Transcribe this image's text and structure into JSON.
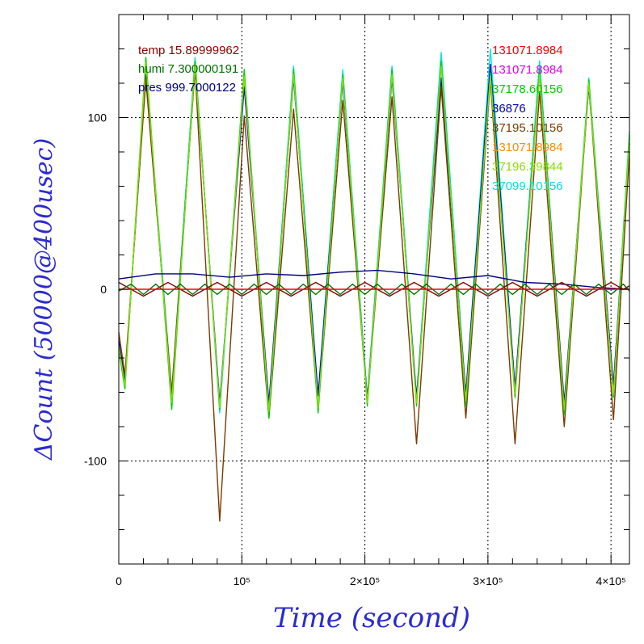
{
  "chart_data": {
    "type": "line",
    "xlabel": "Time (second)",
    "ylabel": "ΔCount (50000@400usec)",
    "xlim": [
      0,
      415000
    ],
    "ylim": [
      -160,
      160
    ],
    "grid": true,
    "x_ticks": [
      {
        "value": 0,
        "label": "0"
      },
      {
        "value": 100000,
        "label": "10⁵"
      },
      {
        "value": 200000,
        "label": "2×10⁵"
      },
      {
        "value": 300000,
        "label": "3×10⁵"
      },
      {
        "value": 400000,
        "label": "4×10⁵"
      }
    ],
    "y_ticks": [
      {
        "value": 100,
        "label": "100"
      },
      {
        "value": 0,
        "label": "0"
      },
      {
        "value": -100,
        "label": "-100"
      }
    ],
    "legend_left": [
      {
        "text": "temp 15.89999962",
        "color": "#8b0000"
      },
      {
        "text": "humi 7.300000191",
        "color": "#007000"
      },
      {
        "text": "pres 999.7000122",
        "color": "#000080"
      }
    ],
    "legend_right": [
      {
        "text": "131071.8984",
        "color": "#ff0000"
      },
      {
        "text": "131071.8984",
        "color": "#e000e0"
      },
      {
        "text": "37178.60156",
        "color": "#00cc00"
      },
      {
        "text": "36876",
        "color": "#0000cc"
      },
      {
        "text": "37195.10156",
        "color": "#7a3a00"
      },
      {
        "text": "131071.8984",
        "color": "#ff8c00"
      },
      {
        "text": "37196.39844",
        "color": "#88dd00"
      },
      {
        "text": "37099.10156",
        "color": "#00dddd"
      }
    ],
    "series": [
      {
        "label": "37099.10156",
        "color": "#00e5e5",
        "x": [
          0,
          5000,
          22000,
          43000,
          62000,
          82000,
          102000,
          122000,
          142000,
          162000,
          182000,
          202000,
          222000,
          242000,
          262000,
          282000,
          302000,
          322000,
          342000,
          362000,
          382000,
          402000,
          415000
        ],
        "y": [
          -30,
          -55,
          130,
          -60,
          135,
          -72,
          125,
          -68,
          130,
          -62,
          128,
          -63,
          130,
          -63,
          138,
          -62,
          140,
          -58,
          133,
          -70,
          123,
          -58,
          92
        ]
      },
      {
        "label": "36876",
        "color": "#0000cc",
        "x": [
          0,
          5000,
          22000,
          43000,
          62000,
          82000,
          102000,
          122000,
          142000,
          162000,
          182000,
          202000,
          222000,
          242000,
          262000,
          282000,
          302000,
          322000,
          342000,
          362000,
          382000,
          402000,
          415000
        ],
        "y": [
          -30,
          -53,
          125,
          -62,
          130,
          -66,
          118,
          -66,
          123,
          -62,
          121,
          -64,
          123,
          -63,
          123,
          -61,
          131,
          -57,
          126,
          -66,
          118,
          -56,
          85
        ]
      },
      {
        "label": "37195.10156",
        "color": "#7a3a00",
        "x": [
          0,
          5000,
          22000,
          43000,
          62000,
          82000,
          102000,
          122000,
          142000,
          162000,
          182000,
          202000,
          222000,
          242000,
          262000,
          282000,
          302000,
          322000,
          342000,
          362000,
          382000,
          402000,
          415000
        ],
        "y": [
          -25,
          -50,
          122,
          -60,
          128,
          -135,
          101,
          -75,
          105,
          -70,
          110,
          -65,
          112,
          -90,
          118,
          -75,
          122,
          -90,
          115,
          -80,
          120,
          -76,
          80
        ]
      },
      {
        "label": "37178.60156",
        "color": "#00cc00",
        "x": [
          0,
          5000,
          22000,
          43000,
          62000,
          82000,
          102000,
          122000,
          142000,
          162000,
          182000,
          202000,
          222000,
          242000,
          262000,
          282000,
          302000,
          322000,
          342000,
          362000,
          382000,
          402000,
          415000
        ],
        "y": [
          -35,
          -58,
          135,
          -70,
          133,
          -70,
          128,
          -75,
          128,
          -72,
          125,
          -68,
          128,
          -68,
          133,
          -68,
          126,
          -63,
          128,
          -73,
          122,
          -63,
          90
        ]
      },
      {
        "label": "37196.39844",
        "color": "#88dd00",
        "x": [
          0,
          5000,
          22000,
          43000,
          62000,
          82000,
          102000,
          122000,
          142000,
          162000,
          182000,
          202000,
          222000,
          242000,
          262000,
          282000,
          302000,
          322000,
          342000,
          362000,
          382000,
          402000,
          415000
        ],
        "y": [
          -33,
          -56,
          132,
          -66,
          131,
          -69,
          124,
          -71,
          125,
          -69,
          123,
          -66,
          125,
          -66,
          130,
          -65,
          124,
          -61,
          125,
          -70,
          120,
          -61,
          88
        ]
      },
      {
        "label": "pres 999.7000122",
        "color": "#000080",
        "x": [
          0,
          30000,
          60000,
          90000,
          120000,
          150000,
          180000,
          210000,
          240000,
          270000,
          300000,
          330000,
          360000,
          390000,
          415000
        ],
        "y": [
          6,
          9,
          9,
          7,
          9,
          8,
          10,
          11,
          9,
          6,
          8,
          4,
          3,
          1,
          0
        ]
      },
      {
        "label": "temp 15.89999962",
        "color": "#8b0000",
        "x": [
          0,
          10000,
          20000,
          30000,
          40000,
          50000,
          60000,
          70000,
          80000,
          90000,
          100000,
          110000,
          120000,
          130000,
          140000,
          150000,
          160000,
          170000,
          180000,
          190000,
          200000,
          210000,
          220000,
          230000,
          240000,
          250000,
          260000,
          270000,
          280000,
          290000,
          300000,
          310000,
          320000,
          330000,
          340000,
          350000,
          360000,
          370000,
          380000,
          390000,
          400000,
          410000,
          415000
        ],
        "y": [
          4,
          0,
          -4,
          0,
          4,
          0,
          -4,
          0,
          4,
          0,
          -4,
          0,
          4,
          0,
          -4,
          0,
          4,
          0,
          -4,
          0,
          4,
          0,
          -4,
          0,
          4,
          0,
          -4,
          0,
          4,
          0,
          -4,
          0,
          4,
          0,
          -4,
          0,
          4,
          0,
          -4,
          0,
          4,
          0,
          2
        ]
      },
      {
        "label": "humi 7.300000191",
        "color": "#007000",
        "x": [
          0,
          10000,
          20000,
          30000,
          40000,
          50000,
          60000,
          70000,
          80000,
          90000,
          100000,
          110000,
          120000,
          130000,
          140000,
          150000,
          160000,
          170000,
          180000,
          190000,
          200000,
          210000,
          220000,
          230000,
          240000,
          250000,
          260000,
          270000,
          280000,
          290000,
          300000,
          310000,
          320000,
          330000,
          340000,
          350000,
          360000,
          370000,
          380000,
          390000,
          400000,
          410000,
          415000
        ],
        "y": [
          -1,
          3,
          -3,
          3,
          -3,
          3,
          -3,
          3,
          -3,
          3,
          -3,
          3,
          -3,
          3,
          -3,
          3,
          -3,
          3,
          -3,
          3,
          -3,
          3,
          -3,
          3,
          -3,
          3,
          -3,
          3,
          -3,
          3,
          -3,
          3,
          -3,
          3,
          -3,
          3,
          -3,
          3,
          -3,
          3,
          -3,
          3,
          -1
        ]
      },
      {
        "label": "131071.8984",
        "color": "#ff0000",
        "x": [
          0,
          415000
        ],
        "y": [
          0,
          0
        ]
      }
    ]
  }
}
